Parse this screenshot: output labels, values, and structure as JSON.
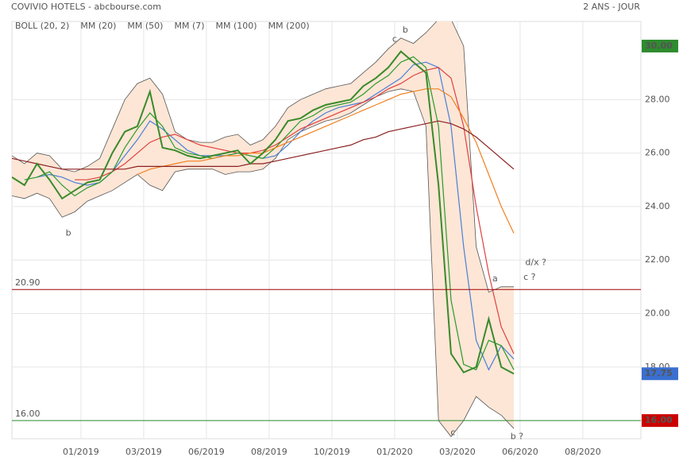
{
  "chart_data": {
    "type": "line",
    "title": "COVIVIO HOTELS - abcbourse.com",
    "subtitle": "2 ANS - JOUR",
    "x": [
      0,
      2,
      4,
      6,
      8,
      10,
      12,
      14,
      16,
      18,
      20,
      22,
      24,
      26,
      28,
      30,
      32,
      34,
      36,
      38,
      40,
      42,
      44,
      46,
      48,
      50,
      52,
      54,
      56,
      58,
      60,
      62,
      64,
      66,
      68,
      70,
      72,
      74,
      76,
      78,
      80
    ],
    "xlim": [
      0,
      100.25
    ],
    "xticks": [
      {
        "value": 11,
        "label": "01/2019"
      },
      {
        "value": 21,
        "label": "03/2019"
      },
      {
        "value": 31,
        "label": "06/2019"
      },
      {
        "value": 41,
        "label": "08/2019"
      },
      {
        "value": 51,
        "label": "10/2019"
      },
      {
        "value": 61,
        "label": "01/2020"
      },
      {
        "value": 71,
        "label": "03/2020"
      },
      {
        "value": 81,
        "label": "06/2020"
      },
      {
        "value": 91,
        "label": "08/2020"
      }
    ],
    "ylim": [
      15.32,
      30.92
    ],
    "yticks": [
      {
        "value": 18,
        "label": "18.00"
      },
      {
        "value": 20,
        "label": "20.00"
      },
      {
        "value": 22,
        "label": "22.00"
      },
      {
        "value": 24,
        "label": "24.00"
      },
      {
        "value": 26,
        "label": "26.00"
      },
      {
        "value": 28,
        "label": "28.00"
      }
    ],
    "grid": true,
    "price": {
      "color": "#3a8a2a",
      "values": [
        25.1,
        24.8,
        25.6,
        25.0,
        24.3,
        24.6,
        24.9,
        25.0,
        26.0,
        26.8,
        27.0,
        28.3,
        26.2,
        26.1,
        25.9,
        25.8,
        25.9,
        26.0,
        26.1,
        25.6,
        26.0,
        26.5,
        27.2,
        27.3,
        27.6,
        27.8,
        27.9,
        28.0,
        28.5,
        28.8,
        29.2,
        29.8,
        29.4,
        29.0,
        24.8,
        18.5,
        17.8,
        18.0,
        19.8,
        18.0,
        17.75
      ]
    },
    "series": [
      {
        "name": "BOLL (20, 2)",
        "color": "#555555",
        "values": [
          25.9,
          25.6,
          26.0,
          25.9,
          25.4,
          25.3,
          25.5,
          25.8,
          26.9,
          28.0,
          28.6,
          28.8,
          28.2,
          26.8,
          26.5,
          26.4,
          26.4,
          26.6,
          26.7,
          26.3,
          26.5,
          27.0,
          27.7,
          28.0,
          28.2,
          28.4,
          28.5,
          28.6,
          29.0,
          29.4,
          29.9,
          30.3,
          30.1,
          30.5,
          31.0,
          31.0,
          30.0,
          22.5,
          20.8,
          21.0,
          21.0
        ],
        "lower": [
          24.4,
          24.3,
          24.5,
          24.3,
          23.6,
          23.8,
          24.2,
          24.4,
          24.6,
          24.9,
          25.2,
          24.8,
          24.6,
          25.3,
          25.4,
          25.4,
          25.4,
          25.2,
          25.3,
          25.3,
          25.4,
          25.8,
          26.5,
          26.8,
          27.0,
          27.2,
          27.3,
          27.5,
          27.8,
          28.1,
          28.3,
          28.4,
          28.3,
          27.0,
          16.0,
          15.4,
          16.0,
          16.9,
          16.5,
          16.2,
          15.7
        ]
      },
      {
        "name": "MM (20)",
        "color": "#4a7fd6",
        "values": [
          null,
          null,
          25.1,
          25.2,
          25.1,
          24.9,
          24.8,
          24.9,
          25.3,
          25.9,
          26.5,
          27.2,
          26.9,
          26.5,
          26.1,
          25.9,
          25.9,
          25.9,
          26.0,
          25.9,
          25.8,
          25.9,
          26.3,
          26.8,
          27.2,
          27.5,
          27.7,
          27.8,
          27.9,
          28.2,
          28.5,
          28.8,
          29.3,
          29.4,
          29.2,
          27.0,
          22.5,
          19.0,
          17.9,
          18.8,
          18.3
        ]
      },
      {
        "name": "MM (50)",
        "color": "#e04040",
        "values": [
          null,
          null,
          null,
          null,
          null,
          25.0,
          25.0,
          25.1,
          25.3,
          25.6,
          26.0,
          26.4,
          26.6,
          26.7,
          26.5,
          26.3,
          26.2,
          26.1,
          26.0,
          26.0,
          26.1,
          26.3,
          26.6,
          26.9,
          27.1,
          27.3,
          27.5,
          27.7,
          27.9,
          28.1,
          28.4,
          28.6,
          28.9,
          29.1,
          29.2,
          28.8,
          27.0,
          24.0,
          21.5,
          19.5,
          18.5
        ]
      },
      {
        "name": "MM (7)",
        "color": "#2a9a2a",
        "values": [
          null,
          25.0,
          25.1,
          25.3,
          24.8,
          24.4,
          24.7,
          24.9,
          25.3,
          26.2,
          26.9,
          27.5,
          27.0,
          26.2,
          26.0,
          25.9,
          25.8,
          25.9,
          26.0,
          25.9,
          25.8,
          26.2,
          26.7,
          27.2,
          27.4,
          27.7,
          27.8,
          27.9,
          28.2,
          28.6,
          28.9,
          29.4,
          29.6,
          29.2,
          27.0,
          20.5,
          18.1,
          17.9,
          19.0,
          18.8,
          17.9
        ]
      },
      {
        "name": "MM (100)",
        "color": "#f08020",
        "values": [
          null,
          null,
          null,
          null,
          null,
          null,
          null,
          null,
          null,
          null,
          25.2,
          25.4,
          25.5,
          25.6,
          25.7,
          25.7,
          25.8,
          25.9,
          25.9,
          26.0,
          26.0,
          26.2,
          26.4,
          26.6,
          26.8,
          27.0,
          27.2,
          27.4,
          27.6,
          27.8,
          28.0,
          28.2,
          28.3,
          28.4,
          28.4,
          28.1,
          27.3,
          26.4,
          25.2,
          24.0,
          23.0
        ]
      },
      {
        "name": "MM (200)",
        "color": "#8b2020",
        "values": [
          25.8,
          25.7,
          25.6,
          25.5,
          25.4,
          25.4,
          25.4,
          25.4,
          25.4,
          25.4,
          25.5,
          25.5,
          25.5,
          25.5,
          25.5,
          25.5,
          25.5,
          25.5,
          25.5,
          25.6,
          25.6,
          25.7,
          25.8,
          25.9,
          26.0,
          26.1,
          26.2,
          26.3,
          26.5,
          26.6,
          26.8,
          26.9,
          27.0,
          27.1,
          27.2,
          27.1,
          26.9,
          26.6,
          26.2,
          25.8,
          25.4
        ]
      }
    ],
    "hlines": [
      {
        "value": 20.9,
        "label": "20.90",
        "color": "#a00000"
      },
      {
        "value": 16,
        "label": "16.00",
        "color": "#2a8a2a"
      }
    ],
    "price_markers": [
      {
        "value": 30,
        "label": "30.00",
        "color": "#2e8b2e"
      },
      {
        "value": 17.75,
        "label": "17.75",
        "color": "#3a6fd0"
      },
      {
        "value": 16,
        "label": "16.00",
        "color": "#cc0000"
      }
    ],
    "annotations": [
      {
        "text": "b",
        "x": 9,
        "y": 23.0,
        "color": "#2a2a9a"
      },
      {
        "text": "c",
        "x": 61,
        "y": 30.25,
        "color": "#2a2a9a"
      },
      {
        "text": "b",
        "x": 62.7,
        "y": 30.6,
        "color": "#b02020"
      },
      {
        "text": "a",
        "x": 77,
        "y": 21.3,
        "color": "#2a2a9a"
      },
      {
        "text": "d/x ?",
        "x": 83.5,
        "y": 21.9,
        "color": "#b02020"
      },
      {
        "text": "c ?",
        "x": 82.5,
        "y": 21.35,
        "color": "#2a2a9a"
      },
      {
        "text": "c",
        "x": 70.3,
        "y": 15.55,
        "color": "#b02020"
      },
      {
        "text": "b ?",
        "x": 80.5,
        "y": 15.4,
        "color": "#2a2a9a"
      }
    ]
  }
}
